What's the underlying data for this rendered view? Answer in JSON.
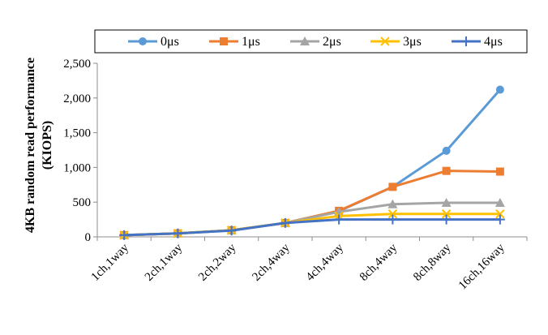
{
  "chart_data": {
    "type": "line",
    "title": "",
    "xlabel": "",
    "ylabel": {
      "line1": "4KB random read performance",
      "line2": "(KIOPS)"
    },
    "categories": [
      "1ch,1way",
      "2ch,1way",
      "2ch,2way",
      "2ch,4way",
      "4ch,4way",
      "8ch,4way",
      "8ch,8way",
      "16ch,16way"
    ],
    "ylim": [
      0,
      2500
    ],
    "yticks": [
      0,
      500,
      1000,
      1500,
      2000,
      2500
    ],
    "ytick_labels": [
      "0",
      "500",
      "1,000",
      "1,500",
      "2,000",
      "2,500"
    ],
    "grid": false,
    "legend_position": "top",
    "series": [
      {
        "name": "0μs",
        "color": "#5B9BD5",
        "marker": "circle",
        "values": [
          25,
          50,
          95,
          200,
          370,
          720,
          1240,
          2120
        ]
      },
      {
        "name": "1μs",
        "color": "#ED7D31",
        "marker": "square",
        "values": [
          25,
          50,
          95,
          200,
          375,
          720,
          950,
          940
        ]
      },
      {
        "name": "2μs",
        "color": "#A5A5A5",
        "marker": "triangle",
        "values": [
          25,
          50,
          95,
          200,
          360,
          470,
          490,
          490
        ]
      },
      {
        "name": "3μs",
        "color": "#FFC000",
        "marker": "x",
        "values": [
          25,
          50,
          95,
          200,
          300,
          330,
          330,
          330
        ]
      },
      {
        "name": "4μs",
        "color": "#4472C4",
        "marker": "plus",
        "values": [
          25,
          50,
          90,
          200,
          250,
          250,
          250,
          250
        ]
      }
    ]
  }
}
